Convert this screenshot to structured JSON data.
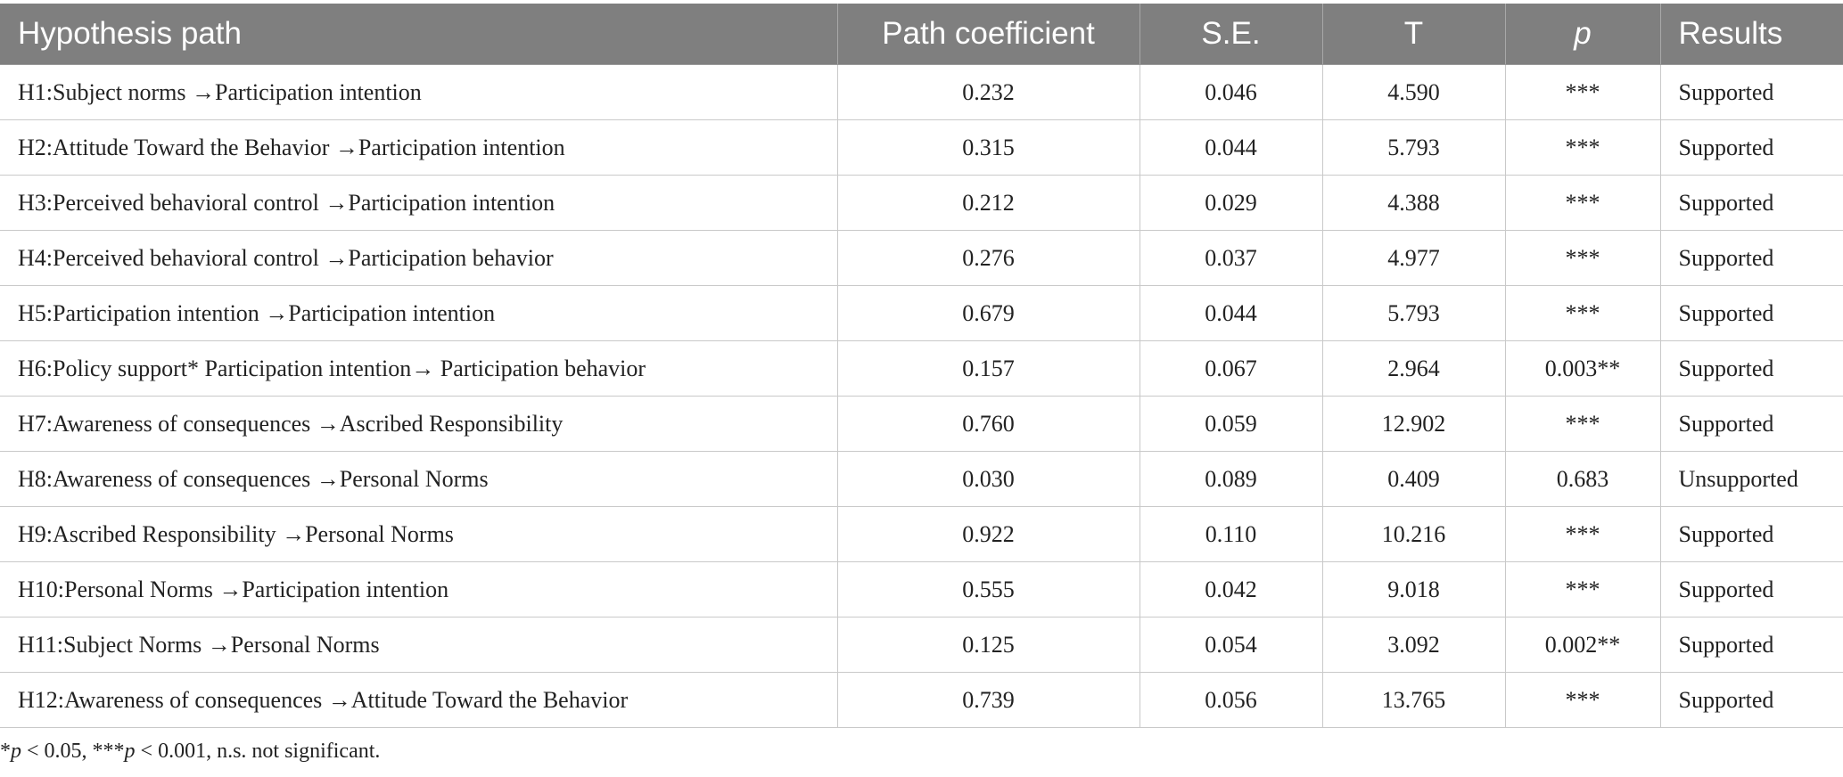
{
  "table": {
    "headers": {
      "hypothesis": "Hypothesis path",
      "coefficient": "Path coefficient",
      "se": "S.E.",
      "t": "T",
      "p": "p",
      "results": "Results"
    },
    "rows": [
      {
        "hypothesis": "H1:Subject norms →Participation intention",
        "coefficient": "0.232",
        "se": "0.046",
        "t": "4.590",
        "p": "***",
        "results": "Supported"
      },
      {
        "hypothesis": "H2:Attitude Toward the Behavior →Participation intention",
        "coefficient": "0.315",
        "se": "0.044",
        "t": "5.793",
        "p": "***",
        "results": "Supported"
      },
      {
        "hypothesis": "H3:Perceived behavioral control →Participation intention",
        "coefficient": "0.212",
        "se": "0.029",
        "t": "4.388",
        "p": "***",
        "results": "Supported"
      },
      {
        "hypothesis": "H4:Perceived behavioral control →Participation behavior",
        "coefficient": "0.276",
        "se": "0.037",
        "t": "4.977",
        "p": "***",
        "results": "Supported"
      },
      {
        "hypothesis": "H5:Participation intention →Participation intention",
        "coefficient": "0.679",
        "se": "0.044",
        "t": "5.793",
        "p": "***",
        "results": "Supported"
      },
      {
        "hypothesis": "H6:Policy support* Participation intention→ Participation behavior",
        "coefficient": "0.157",
        "se": "0.067",
        "t": "2.964",
        "p": "0.003**",
        "results": "Supported"
      },
      {
        "hypothesis": "H7:Awareness of consequences →Ascribed Responsibility",
        "coefficient": "0.760",
        "se": "0.059",
        "t": "12.902",
        "p": "***",
        "results": "Supported"
      },
      {
        "hypothesis": "H8:Awareness of consequences →Personal Norms",
        "coefficient": "0.030",
        "se": "0.089",
        "t": "0.409",
        "p": "0.683",
        "results": "Unsupported"
      },
      {
        "hypothesis": "H9:Ascribed Responsibility →Personal Norms",
        "coefficient": "0.922",
        "se": "0.110",
        "t": "10.216",
        "p": "***",
        "results": "Supported"
      },
      {
        "hypothesis": "H10:Personal Norms →Participation intention",
        "coefficient": "0.555",
        "se": "0.042",
        "t": "9.018",
        "p": "***",
        "results": "Supported"
      },
      {
        "hypothesis": "H11:Subject Norms →Personal Norms",
        "coefficient": "0.125",
        "se": "0.054",
        "t": "3.092",
        "p": "0.002**",
        "results": "Supported"
      },
      {
        "hypothesis": "H12:Awareness of consequences →Attitude Toward the Behavior",
        "coefficient": "0.739",
        "se": "0.056",
        "t": "13.765",
        "p": "***",
        "results": "Supported"
      }
    ]
  },
  "footnote": {
    "part1": "*",
    "p1": "p",
    "part2": " < 0.05, ***",
    "p2": "p",
    "part3": " < 0.001, n.s. not significant."
  },
  "colors": {
    "header_bg": "#7f7f7f",
    "header_text": "#ffffff",
    "grid": "#c9c9c9"
  }
}
